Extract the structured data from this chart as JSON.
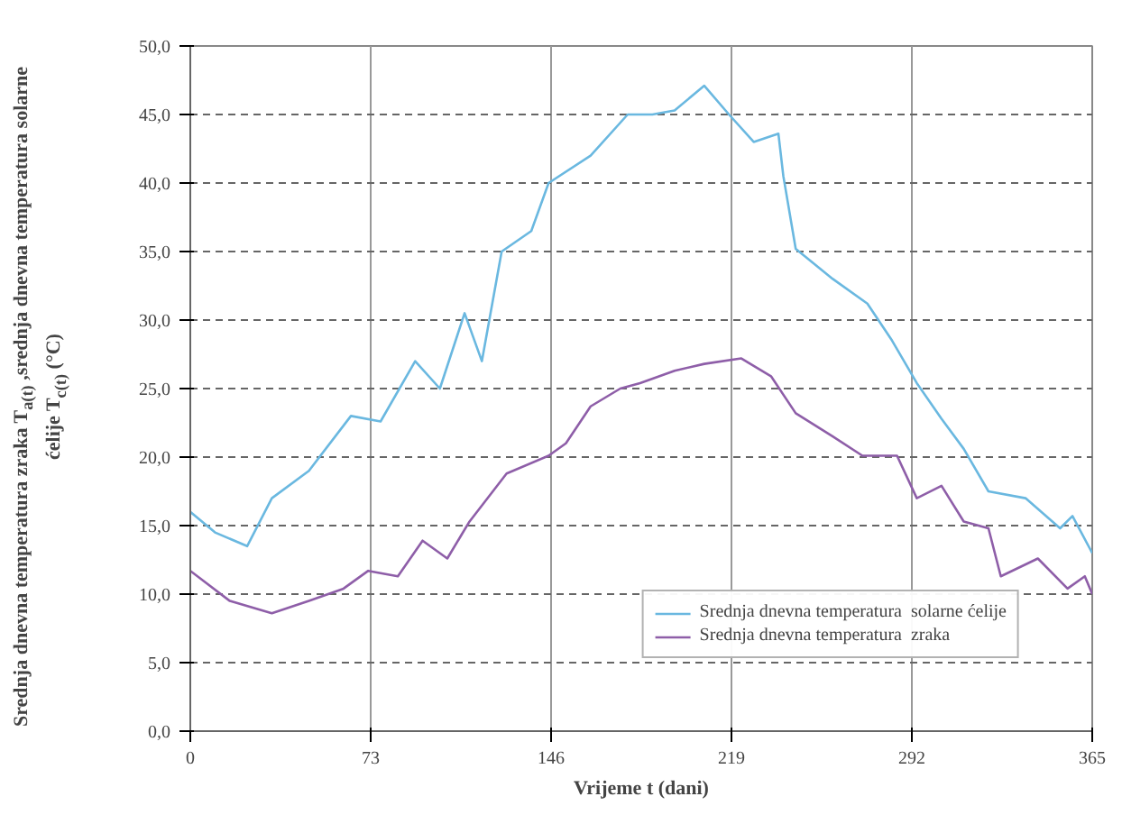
{
  "chart_data": {
    "type": "line",
    "xlabel": "Vrijeme t (dani)",
    "ylabel": "Srednja dnevna temperatura zraka T$_{a(t)}$ ,srednja dnevna temperatura solarne ćelije T$_{c(t)}$ (°C)",
    "xlim": [
      0,
      365
    ],
    "xticks": [
      0,
      73,
      146,
      219,
      292,
      365
    ],
    "ylim": [
      0,
      50
    ],
    "yticks": [
      {
        "value": 0,
        "label": "0,0"
      },
      {
        "value": 5,
        "label": "5,0"
      },
      {
        "value": 10,
        "label": "10,0"
      },
      {
        "value": 15,
        "label": "15,0"
      },
      {
        "value": 20,
        "label": "20,0"
      },
      {
        "value": 25,
        "label": "25,0"
      },
      {
        "value": 30,
        "label": "30,0"
      },
      {
        "value": 35,
        "label": "35,0"
      },
      {
        "value": 40,
        "label": "40,0"
      },
      {
        "value": 45,
        "label": "45,0"
      },
      {
        "value": 50,
        "label": "50,0"
      }
    ],
    "grid": true,
    "legend": "bottom right",
    "line_style": "solid",
    "series": [
      {
        "name": "Srednja dnevna temperatura  solarne ćelije",
        "color": "#6ab8e0",
        "x": [
          0,
          10,
          23,
          33,
          48,
          65,
          77,
          91,
          101,
          111,
          118,
          126,
          138,
          145,
          162,
          177,
          187,
          196,
          208,
          218,
          228,
          238,
          240,
          245,
          260,
          274,
          284,
          294,
          304,
          313,
          323,
          338,
          352,
          357,
          365
        ],
        "values": [
          16,
          14.5,
          13.5,
          17,
          19,
          23,
          22.6,
          27,
          25,
          30.5,
          27,
          35,
          36.5,
          40,
          42,
          45,
          45,
          45.3,
          47.1,
          45,
          43,
          43.6,
          40.5,
          35.2,
          33,
          31.2,
          28.5,
          25.4,
          22.8,
          20.6,
          17.5,
          17,
          14.8,
          15.7,
          13
        ]
      },
      {
        "name": "Srednja dnevna temperatura  zraka",
        "color": "#8e5ea8",
        "x": [
          0,
          16,
          33,
          48,
          62,
          72,
          84,
          94,
          104,
          113,
          128,
          145,
          152,
          162,
          174,
          182,
          196,
          208,
          223,
          235,
          245,
          260,
          272,
          286,
          294,
          304,
          313,
          323,
          328,
          343,
          355,
          362,
          365
        ],
        "values": [
          11.7,
          9.5,
          8.6,
          9.5,
          10.4,
          11.7,
          11.3,
          13.9,
          12.6,
          15.3,
          18.8,
          20.1,
          21,
          23.7,
          25,
          25.4,
          26.3,
          26.8,
          27.2,
          25.9,
          23.2,
          21.5,
          20.1,
          20.1,
          17,
          17.9,
          15.3,
          14.8,
          11.3,
          12.6,
          10.4,
          11.3,
          10
        ]
      }
    ]
  }
}
